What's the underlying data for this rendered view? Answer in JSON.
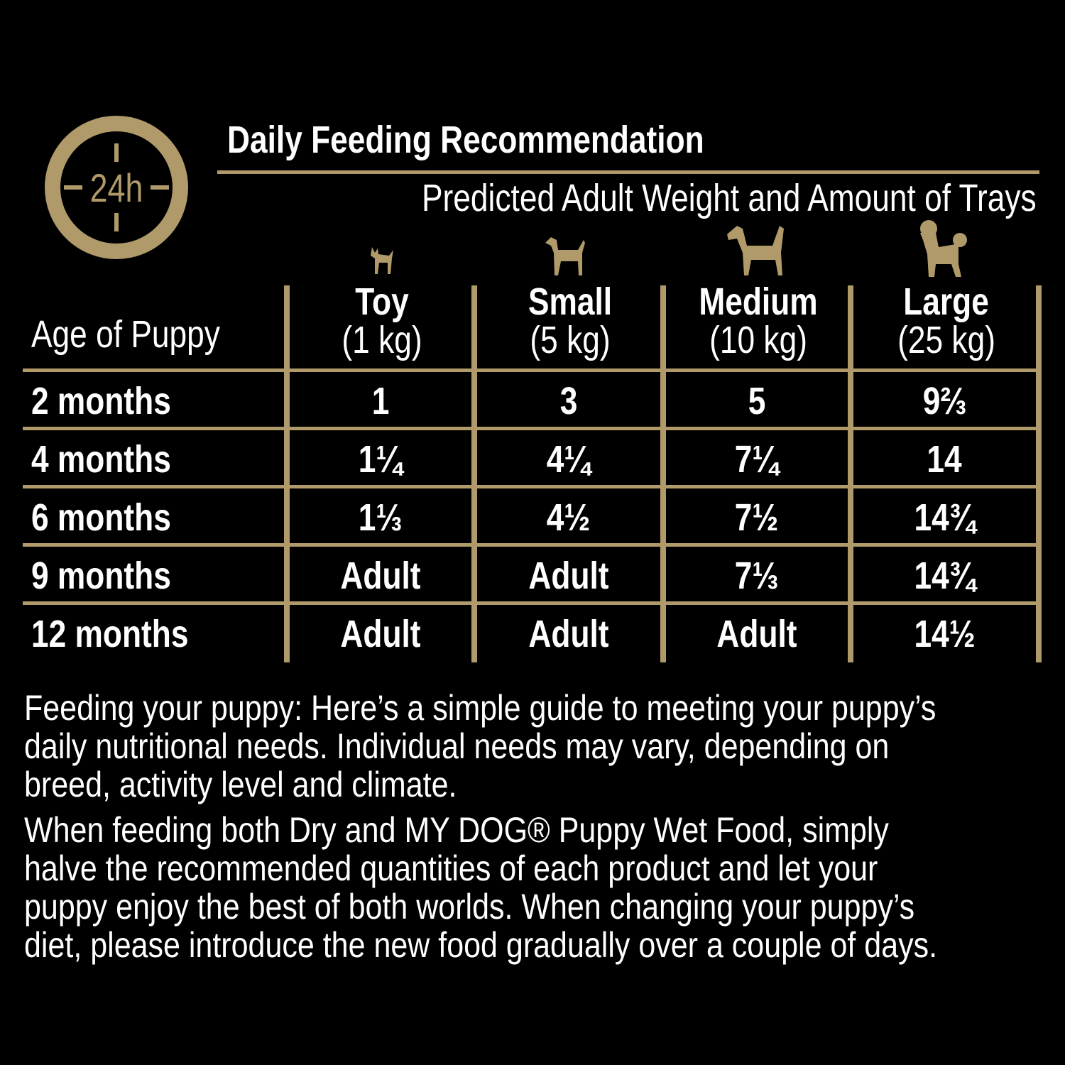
{
  "header": {
    "icon_label": "24h",
    "title": "Daily Feeding Recommendation",
    "subtitle": "Predicted Adult Weight and Amount of Trays"
  },
  "colors": {
    "accent_gold": "#b09a6a",
    "background": "#000000",
    "text": "#ffffff"
  },
  "table": {
    "row_header": "Age of Puppy",
    "columns": [
      {
        "name": "Toy",
        "weight": "(1 kg)",
        "icon": "toy-dog-icon"
      },
      {
        "name": "Small",
        "weight": "(5 kg)",
        "icon": "small-dog-icon"
      },
      {
        "name": "Medium",
        "weight": "(10 kg)",
        "icon": "medium-dog-icon"
      },
      {
        "name": "Large",
        "weight": "(25 kg)",
        "icon": "poodle-icon"
      }
    ],
    "rows": [
      {
        "age": "2 months",
        "values": [
          "1",
          "3",
          "5",
          "9⅔"
        ]
      },
      {
        "age": "4 months",
        "values": [
          "1¼",
          "4¼",
          "7¼",
          "14"
        ]
      },
      {
        "age": "6 months",
        "values": [
          "1⅓",
          "4½",
          "7½",
          "14¾"
        ]
      },
      {
        "age": "9 months",
        "values": [
          "Adult",
          "Adult",
          "7⅓",
          "14¾"
        ]
      },
      {
        "age": "12 months",
        "values": [
          "Adult",
          "Adult",
          "Adult",
          "14½"
        ]
      }
    ]
  },
  "notes": {
    "paragraph1": [
      "Feeding your puppy: Here’s a simple guide to meeting your puppy’s",
      "daily nutritional needs.  Individual needs may vary, depending on",
      "breed, activity level and climate."
    ],
    "paragraph2": [
      "When feeding both Dry and MY DOG® Puppy Wet Food, simply",
      "halve the recommended quantities of each product and let your",
      "puppy enjoy the best of both worlds.  When changing your puppy’s",
      "diet, please introduce the new food gradually over a couple of days."
    ]
  }
}
